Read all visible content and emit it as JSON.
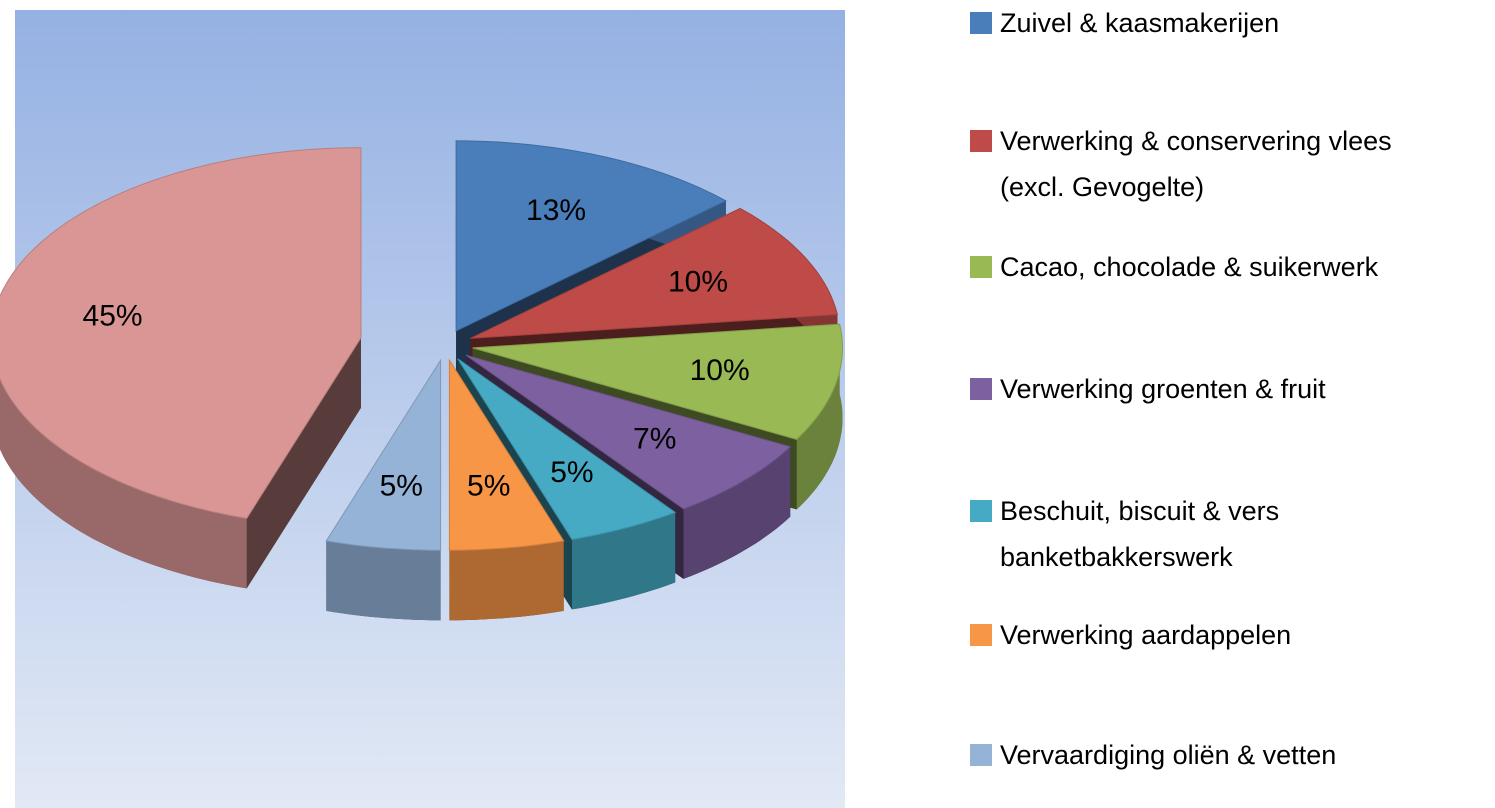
{
  "chart_data": {
    "type": "pie",
    "categories": [
      "Zuivel & kaasmakerijen",
      "Verwerking & conservering vlees (excl. Gevogelte)",
      "Cacao, chocolade & suikerwerk",
      "Verwerking groenten & fruit",
      "Beschuit, biscuit & vers banketbakkerswerk",
      "Verwerking aardappelen",
      "Vervaardiging oliën & vetten",
      null
    ],
    "values": [
      13,
      10,
      10,
      7,
      5,
      5,
      5,
      45
    ],
    "value_labels": [
      "13%",
      "10%",
      "10%",
      "7%",
      "5%",
      "5%",
      "5%",
      "45%"
    ],
    "colors": [
      "#4a7ebb",
      "#be4b48",
      "#98b954",
      "#7d60a0",
      "#46aac5",
      "#f79646",
      "#95b3d7",
      "#d99694"
    ],
    "legend": "right"
  }
}
